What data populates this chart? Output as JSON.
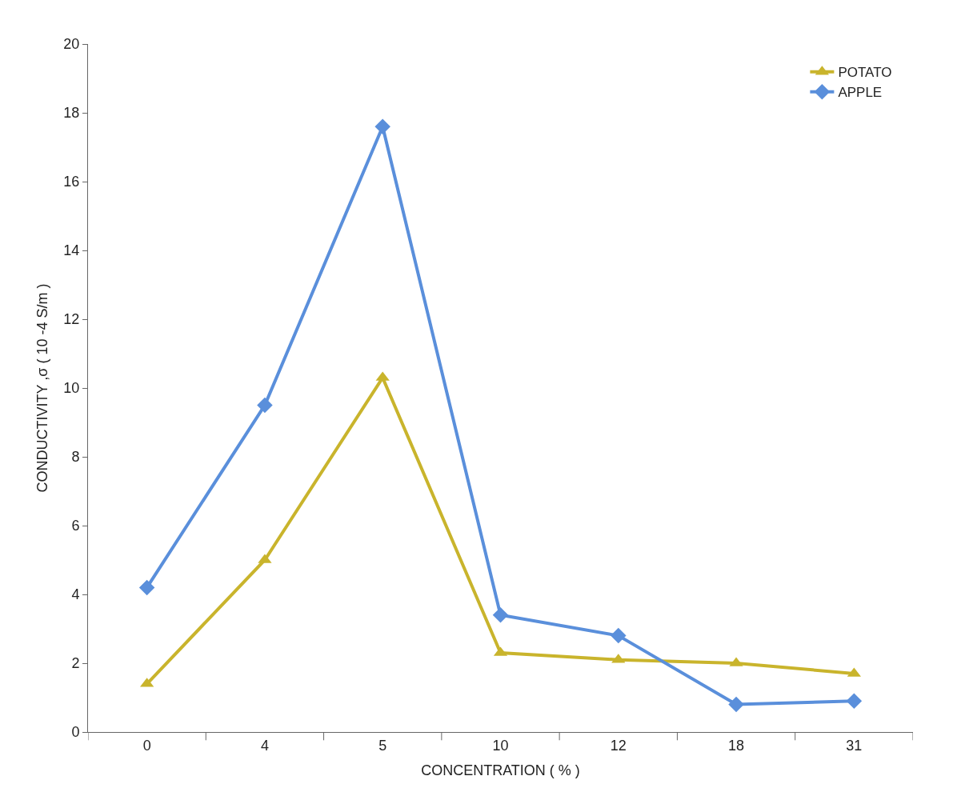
{
  "chart_data": {
    "type": "line",
    "xlabel": "CONCENTRATION ( % )",
    "ylabel": "CONDUCTIVITY ,σ ( 10 -4 S/m )",
    "categories": [
      "0",
      "4",
      "5",
      "10",
      "12",
      "18",
      "31"
    ],
    "series": [
      {
        "name": "POTATO",
        "color": "#c9b42c",
        "marker": "triangle",
        "values": [
          1.4,
          5.0,
          10.3,
          2.3,
          2.1,
          2.0,
          1.7
        ]
      },
      {
        "name": "APPLE",
        "color": "#5a8fdb",
        "marker": "diamond",
        "values": [
          4.2,
          9.5,
          17.6,
          3.4,
          2.8,
          0.8,
          0.9
        ]
      }
    ],
    "ylim": [
      0,
      20
    ],
    "yticks": [
      0,
      2,
      4,
      6,
      8,
      10,
      12,
      14,
      16,
      18,
      20
    ],
    "legend": "top right",
    "line_style": "solid"
  }
}
